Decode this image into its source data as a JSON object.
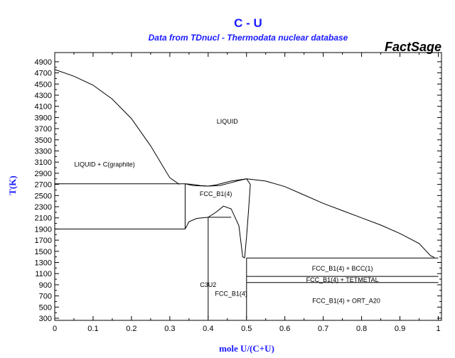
{
  "chart_data": {
    "type": "line",
    "title": "C - U",
    "subtitle": "Data from TDnucl - Thermodata nuclear database",
    "brand": "FactSage",
    "xlabel": "mole U/(C+U)",
    "ylabel": "T(K)",
    "xlim": [
      0,
      1
    ],
    "ylim": [
      300,
      5000
    ],
    "x_ticks": [
      0,
      0.1,
      0.2,
      0.3,
      0.4,
      0.5,
      0.6,
      0.7,
      0.8,
      0.9,
      1
    ],
    "x_tick_labels": [
      "0",
      "0.1",
      "0.2",
      "0.3",
      "0.4",
      "0.5",
      "0.6",
      "0.7",
      "0.8",
      "0.9",
      "1"
    ],
    "y_ticks": [
      300,
      500,
      700,
      900,
      1100,
      1300,
      1500,
      1700,
      1900,
      2100,
      2300,
      2500,
      2700,
      2900,
      3100,
      3300,
      3500,
      3700,
      3900,
      4100,
      4300,
      4500,
      4700,
      4900
    ],
    "y_tick_labels": [
      "300",
      "500",
      "700",
      "900",
      "1100",
      "1300",
      "1500",
      "1700",
      "1900",
      "2100",
      "2300",
      "2500",
      "2700",
      "2900",
      "3100",
      "3300",
      "3500",
      "3700",
      "3900",
      "4100",
      "4300",
      "4500",
      "4700",
      "4900"
    ],
    "series": [
      {
        "values": [
          [
            0,
            4760
          ],
          [
            0.05,
            4640
          ],
          [
            0.1,
            4480
          ],
          [
            0.15,
            4230
          ],
          [
            0.2,
            3880
          ],
          [
            0.25,
            3390
          ],
          [
            0.3,
            2820
          ],
          [
            0.325,
            2700
          ]
        ]
      },
      {
        "values": [
          [
            0.34,
            2710
          ],
          [
            0.36,
            2680
          ],
          [
            0.4,
            2670
          ],
          [
            0.42,
            2690
          ],
          [
            0.46,
            2760
          ],
          [
            0.5,
            2800
          ],
          [
            0.55,
            2760
          ],
          [
            0.6,
            2660
          ],
          [
            0.65,
            2510
          ],
          [
            0.7,
            2360
          ],
          [
            0.75,
            2230
          ],
          [
            0.8,
            2100
          ],
          [
            0.85,
            1970
          ],
          [
            0.9,
            1820
          ],
          [
            0.95,
            1640
          ],
          [
            0.98,
            1420
          ],
          [
            0.99,
            1390
          ]
        ]
      },
      {
        "values": [
          [
            0.34,
            2710
          ],
          [
            0.36,
            2700
          ],
          [
            0.38,
            2680
          ],
          [
            0.4,
            2670
          ],
          [
            0.43,
            2680
          ],
          [
            0.46,
            2730
          ],
          [
            0.48,
            2770
          ],
          [
            0.5,
            2800
          ]
        ]
      },
      {
        "values": [
          [
            0.34,
            1900
          ],
          [
            0.35,
            2030
          ],
          [
            0.37,
            2090
          ],
          [
            0.4,
            2110
          ],
          [
            0.42,
            2200
          ],
          [
            0.44,
            2310
          ],
          [
            0.46,
            2260
          ],
          [
            0.47,
            2110
          ],
          [
            0.48,
            1960
          ],
          [
            0.49,
            1400
          ],
          [
            0.495,
            1380
          ]
        ]
      },
      {
        "values": [
          [
            0.495,
            1380
          ],
          [
            0.5,
            1760
          ],
          [
            0.505,
            2200
          ],
          [
            0.51,
            2700
          ],
          [
            0.5,
            2800
          ]
        ]
      },
      {
        "values": [
          [
            0.0,
            2710
          ],
          [
            0.34,
            2710
          ]
        ]
      },
      {
        "values": [
          [
            0.34,
            2710
          ],
          [
            0.34,
            1900
          ]
        ]
      },
      {
        "values": [
          [
            0.0,
            1900
          ],
          [
            0.34,
            1900
          ]
        ]
      },
      {
        "values": [
          [
            0.4,
            2110
          ],
          [
            0.46,
            2110
          ]
        ]
      },
      {
        "values": [
          [
            0.4,
            2110
          ],
          [
            0.4,
            300
          ]
        ]
      },
      {
        "values": [
          [
            0.5,
            1380
          ],
          [
            0.5,
            300
          ]
        ]
      },
      {
        "values": [
          [
            0.5,
            1380
          ],
          [
            1.0,
            1380
          ]
        ]
      },
      {
        "values": [
          [
            0.5,
            1050
          ],
          [
            1.0,
            1050
          ]
        ]
      },
      {
        "values": [
          [
            0.5,
            940
          ],
          [
            1.0,
            940
          ]
        ]
      }
    ],
    "annotations": [
      {
        "text": "LIQUID",
        "x": 0.45,
        "y": 3830
      },
      {
        "text": "LIQUID + C(graphite)",
        "x": 0.13,
        "y": 3060
      },
      {
        "text": "FCC_B1(4)",
        "x": 0.42,
        "y": 2530
      },
      {
        "text": "FCC_B1(4) + BCC(1)",
        "x": 0.75,
        "y": 1190
      },
      {
        "text": "FCC_B1(4) + TETMETAL",
        "x": 0.75,
        "y": 990
      },
      {
        "text": "C3U2",
        "x": 0.4,
        "y": 900
      },
      {
        "text": "FCC_B1(4)",
        "x": 0.46,
        "y": 740
      },
      {
        "text": "FCC_B1(4) + ORT_A20",
        "x": 0.76,
        "y": 610
      }
    ],
    "grid": false,
    "legend": "none"
  }
}
